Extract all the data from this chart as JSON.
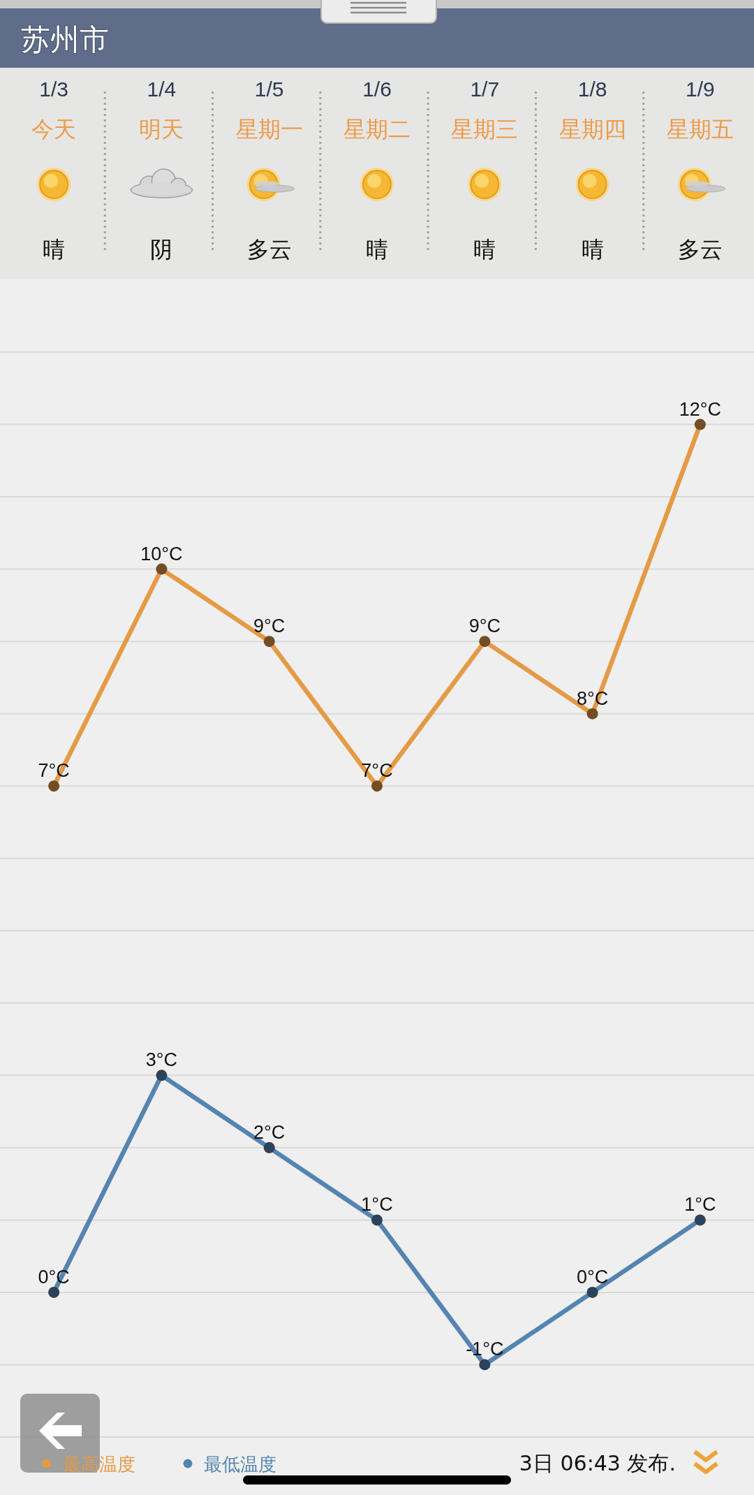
{
  "chart_data": {
    "type": "line",
    "title": "苏州市",
    "categories": [
      "1/3",
      "1/4",
      "1/5",
      "1/6",
      "1/7",
      "1/8",
      "1/9"
    ],
    "series": [
      {
        "name": "最高温度",
        "color": "#e59a45",
        "values": [
          7,
          10,
          9,
          7,
          9,
          8,
          12
        ],
        "value_labels": [
          "7°C",
          "10°C",
          "9°C",
          "7°C",
          "9°C",
          "8°C",
          "12°C"
        ]
      },
      {
        "name": "最低温度",
        "color": "#5584b0",
        "values": [
          0,
          3,
          2,
          1,
          -1,
          0,
          1
        ],
        "value_labels": [
          "0°C",
          "3°C",
          "2°C",
          "1°C",
          "-1°C",
          "0°C",
          "1°C"
        ]
      }
    ],
    "yticks": [
      {
        "value": 13,
        "label": null
      },
      {
        "value": 12,
        "label": null
      },
      {
        "value": 11,
        "label": null
      },
      {
        "value": 10,
        "label": null
      },
      {
        "value": 9,
        "label": null
      },
      {
        "value": 8,
        "label": null
      },
      {
        "value": 7,
        "label": null
      },
      {
        "value": 6,
        "label": null
      },
      {
        "value": 5,
        "label": null
      },
      {
        "value": 4,
        "label": null
      },
      {
        "value": 3,
        "label": null
      },
      {
        "value": 2,
        "label": null
      },
      {
        "value": 1,
        "label": null
      },
      {
        "value": 0,
        "label": null
      },
      {
        "value": -1,
        "label": null
      },
      {
        "value": -2,
        "label": null
      }
    ],
    "grid": "y",
    "marker": "circle",
    "legend": "bottom left",
    "tick_labels": "x",
    "annotations": [
      "今天",
      "晴",
      "明天",
      "阴",
      "星期一",
      "多云",
      "星期二",
      "晴",
      "星期三",
      "晴",
      "星期四",
      "晴",
      "星期五",
      "多云",
      "3日 06:43 发布."
    ]
  }
}
